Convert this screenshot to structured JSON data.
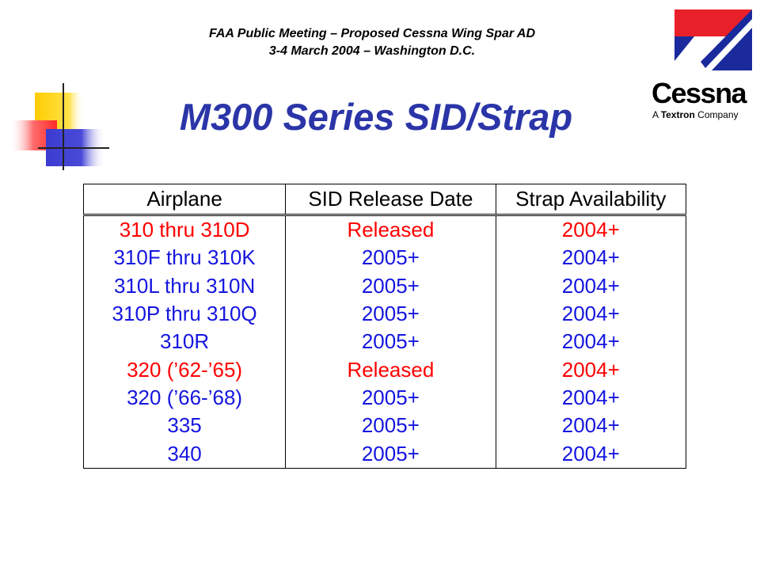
{
  "header": {
    "line1": "FAA Public Meeting – Proposed Cessna Wing Spar AD",
    "line2": "3-4 March 2004 – Washington D.C."
  },
  "title": "M300 Series SID/Strap",
  "logo": {
    "word": "Cessna",
    "sub_prefix": "A ",
    "sub_bold": "Textron",
    "sub_suffix": " Company",
    "colors": {
      "red": "#e8202a",
      "blue": "#1a2a9c"
    }
  },
  "table": {
    "headers": [
      "Airplane",
      "SID Release Date",
      "Strap Availability"
    ],
    "rows": [
      {
        "color": "red",
        "cells": [
          "310 thru 310D",
          "Released",
          "2004+"
        ]
      },
      {
        "color": "blue",
        "cells": [
          "310F thru 310K",
          "2005+",
          "2004+"
        ]
      },
      {
        "color": "blue",
        "cells": [
          "310L thru 310N",
          "2005+",
          "2004+"
        ]
      },
      {
        "color": "blue",
        "cells": [
          "310P thru 310Q",
          "2005+",
          "2004+"
        ]
      },
      {
        "color": "blue",
        "cells": [
          "310R",
          "2005+",
          "2004+"
        ]
      },
      {
        "color": "red",
        "cells": [
          "320 (’62-’65)",
          "Released",
          "2004+"
        ]
      },
      {
        "color": "blue",
        "cells": [
          "320 (’66-’68)",
          "2005+",
          "2004+"
        ]
      },
      {
        "color": "blue",
        "cells": [
          "335",
          "2005+",
          "2004+"
        ]
      },
      {
        "color": "blue",
        "cells": [
          "340",
          "2005+",
          "2004+"
        ]
      }
    ]
  },
  "colors": {
    "title": "#2b35a8",
    "red_text": "#ff0000",
    "blue_text": "#1515e0"
  }
}
